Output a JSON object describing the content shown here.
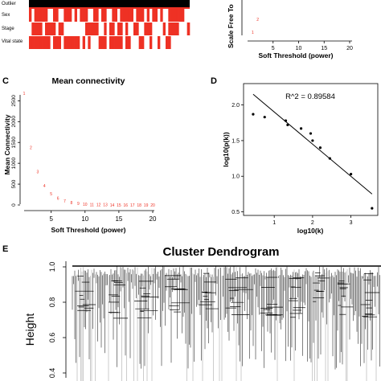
{
  "chart_data": [
    {
      "panel": "",
      "type": "heatmap",
      "rows": [
        "Outlier",
        "Sex",
        "Stage",
        "Vital state"
      ],
      "colors": {
        "on": "#ee3124",
        "off": "#ffffff",
        "top": "#000000"
      }
    },
    {
      "panel": "",
      "type": "scatter",
      "ylabel": "Scale Free To",
      "xlabel": "Soft Threshold (power)",
      "xticks": [
        "5",
        "10",
        "15",
        "20"
      ],
      "xlim": [
        0,
        20
      ],
      "points": [
        {
          "x": 1,
          "y": 0.05,
          "label": "1"
        },
        {
          "x": 2,
          "y": 0.45,
          "label": "2"
        }
      ],
      "color": "#ee3124"
    },
    {
      "panel": "C",
      "type": "scatter",
      "title": "Mean connectivity",
      "xlabel": "Soft Threshold (power)",
      "ylabel": "Mean Connectivity",
      "xlim": [
        0,
        20
      ],
      "ylim": [
        0,
        2700
      ],
      "xticks": [
        5,
        10,
        15,
        20
      ],
      "yticks": [
        0,
        500,
        1000,
        1500,
        2000,
        2500
      ],
      "color": "#ee3124",
      "points": [
        {
          "x": 1,
          "y": 2680,
          "label": "1"
        },
        {
          "x": 2,
          "y": 1380,
          "label": "2"
        },
        {
          "x": 3,
          "y": 800,
          "label": "3"
        },
        {
          "x": 4,
          "y": 460,
          "label": "4"
        },
        {
          "x": 5,
          "y": 270,
          "label": "5"
        },
        {
          "x": 6,
          "y": 160,
          "label": "6"
        },
        {
          "x": 7,
          "y": 100,
          "label": "7"
        },
        {
          "x": 8,
          "y": 60,
          "label": "8"
        },
        {
          "x": 9,
          "y": 35,
          "label": "9"
        },
        {
          "x": 10,
          "y": 22,
          "label": "10"
        },
        {
          "x": 11,
          "y": 14,
          "label": "11"
        },
        {
          "x": 12,
          "y": 9,
          "label": "12"
        },
        {
          "x": 13,
          "y": 6,
          "label": "13"
        },
        {
          "x": 14,
          "y": 4,
          "label": "14"
        },
        {
          "x": 15,
          "y": 3,
          "label": "15"
        },
        {
          "x": 16,
          "y": 2,
          "label": "16"
        },
        {
          "x": 17,
          "y": 1.5,
          "label": "17"
        },
        {
          "x": 18,
          "y": 1,
          "label": "18"
        },
        {
          "x": 19,
          "y": 1,
          "label": "19"
        },
        {
          "x": 20,
          "y": 1,
          "label": "20"
        }
      ]
    },
    {
      "panel": "D",
      "type": "scatter",
      "annotation": "R^2 = 0.89584",
      "xlabel": "log10(k)",
      "ylabel": "log10(p(k))",
      "xlim": [
        0.2,
        3.7
      ],
      "ylim": [
        0.45,
        2.3
      ],
      "xticks": [
        1,
        2,
        3
      ],
      "yticks": [
        0.5,
        1.0,
        1.5,
        2.0
      ],
      "points": [
        {
          "x": 0.45,
          "y": 1.87
        },
        {
          "x": 0.75,
          "y": 1.83
        },
        {
          "x": 1.3,
          "y": 1.78
        },
        {
          "x": 1.35,
          "y": 1.72
        },
        {
          "x": 1.7,
          "y": 1.67
        },
        {
          "x": 1.95,
          "y": 1.6
        },
        {
          "x": 2.0,
          "y": 1.5
        },
        {
          "x": 2.2,
          "y": 1.4
        },
        {
          "x": 2.45,
          "y": 1.25
        },
        {
          "x": 3.0,
          "y": 1.03
        },
        {
          "x": 3.55,
          "y": 0.55
        }
      ],
      "fit_line": {
        "x": [
          0.45,
          3.55
        ],
        "y": [
          2.15,
          0.75
        ]
      }
    },
    {
      "panel": "E",
      "type": "dendrogram",
      "title": "Cluster Dendrogram",
      "ylabel": "Height",
      "ylim": [
        0.38,
        1.0
      ],
      "yticks": [
        0.4,
        0.6,
        0.8,
        1.0
      ]
    }
  ]
}
